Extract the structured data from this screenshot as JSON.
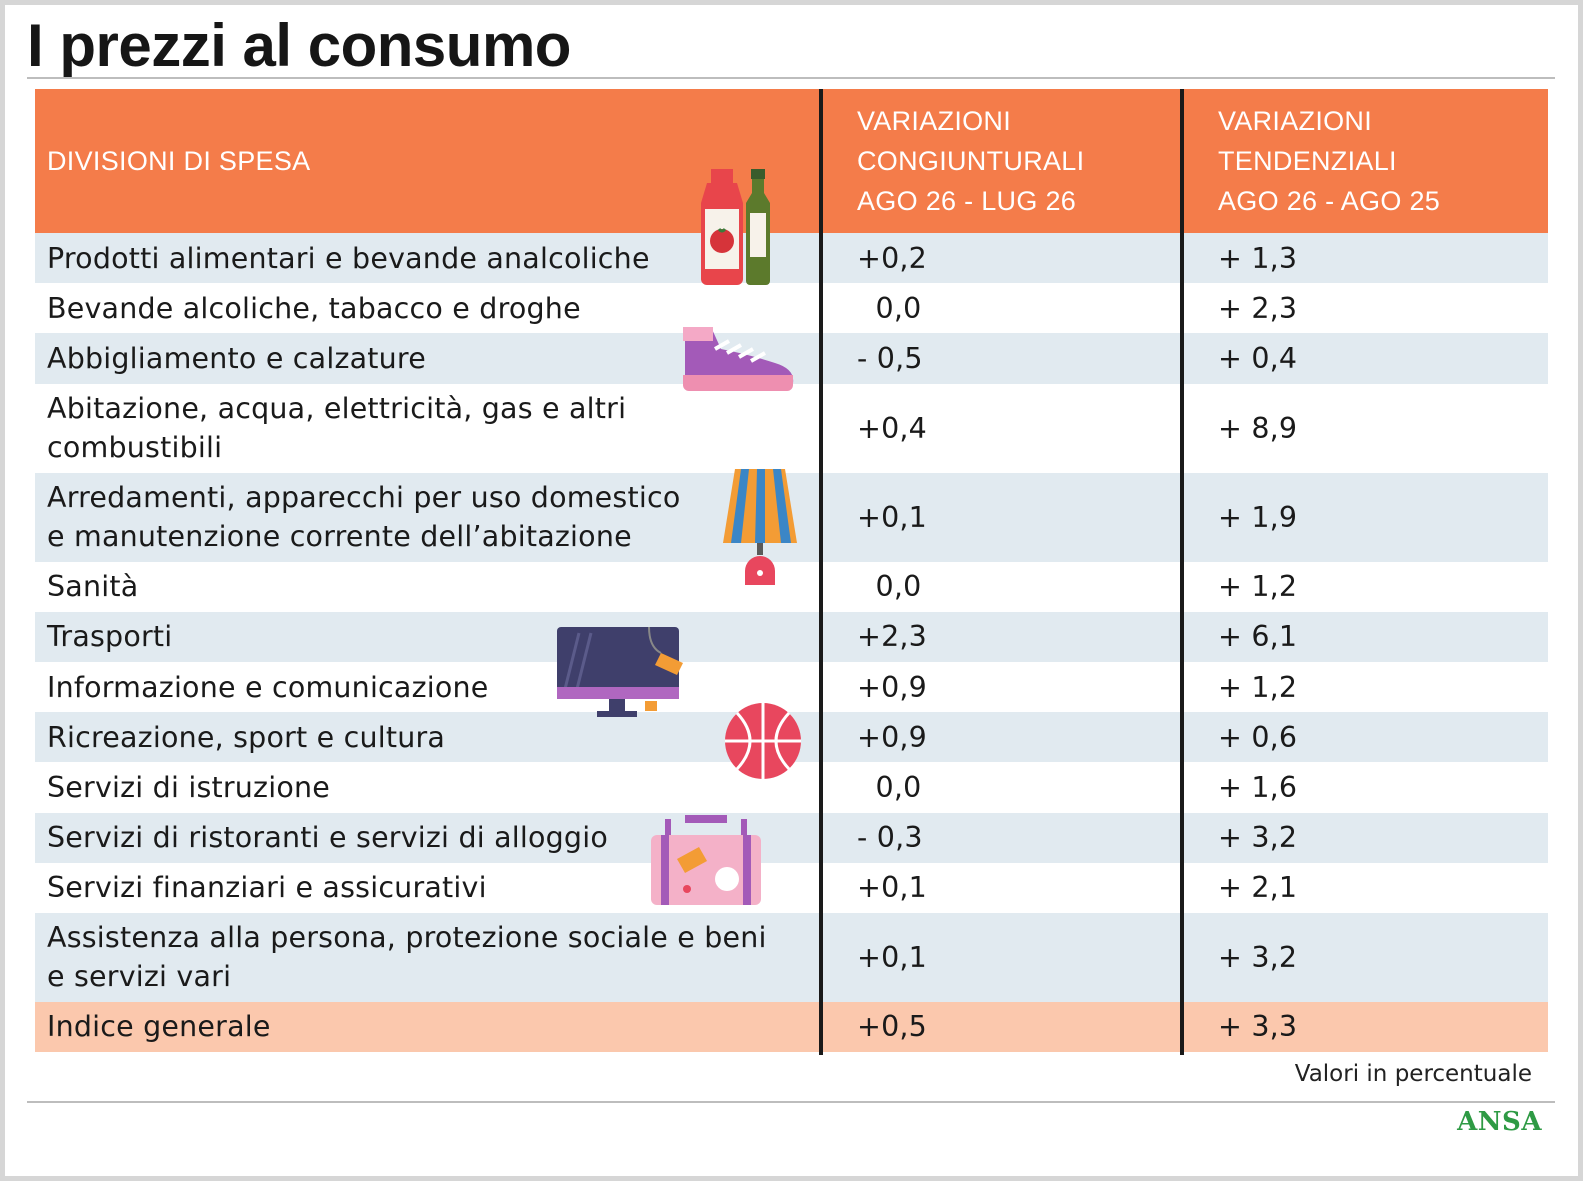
{
  "title": "I prezzi al consumo",
  "header": {
    "col1": "DIVISIONI DI SPESA",
    "col2": [
      "VARIAZIONI",
      "CONGIUNTURALI",
      "AGO 26 - LUG 26"
    ],
    "col3": [
      "VARIAZIONI TENDENZIALI",
      "AGO 26 - AGO 25"
    ]
  },
  "chart_data": {
    "type": "table",
    "columns": [
      "DIVISIONI DI SPESA",
      "VARIAZIONI CONGIUNTURALI AGO 26 - LUG 26",
      "VARIAZIONI TENDENZIALI AGO 26 - AGO 25"
    ],
    "rows": [
      {
        "label": [
          "Prodotti alimentari e bevande analcoliche"
        ],
        "cong": "+0,2",
        "tend": "+ 1,3",
        "kind": "shade"
      },
      {
        "label": [
          "Bevande alcoliche, tabacco e droghe"
        ],
        "cong": "  0,0",
        "tend": "+ 2,3",
        "kind": "plain"
      },
      {
        "label": [
          "Abbigliamento e calzature"
        ],
        "cong": "- 0,5",
        "tend": "+ 0,4",
        "kind": "shade"
      },
      {
        "label": [
          "Abitazione, acqua, elettricità, gas e altri",
          "combustibili"
        ],
        "cong": "+0,4",
        "tend": "+ 8,9",
        "kind": "plain"
      },
      {
        "label": [
          "Arredamenti, apparecchi per uso domestico",
          "e manutenzione corrente dell’abitazione"
        ],
        "cong": "+0,1",
        "tend": "+ 1,9",
        "kind": "shade"
      },
      {
        "label": [
          "Sanità"
        ],
        "cong": "  0,0",
        "tend": "+ 1,2",
        "kind": "plain"
      },
      {
        "label": [
          "Trasporti"
        ],
        "cong": "+2,3",
        "tend": "+ 6,1",
        "kind": "shade"
      },
      {
        "label": [
          "Informazione e comunicazione"
        ],
        "cong": "+0,9",
        "tend": "+ 1,2",
        "kind": "plain"
      },
      {
        "label": [
          "Ricreazione, sport e cultura"
        ],
        "cong": "+0,9",
        "tend": "+ 0,6",
        "kind": "shade"
      },
      {
        "label": [
          "Servizi di istruzione"
        ],
        "cong": "  0,0",
        "tend": "+ 1,6",
        "kind": "plain"
      },
      {
        "label": [
          "Servizi di ristoranti e servizi di alloggio"
        ],
        "cong": "- 0,3",
        "tend": "+ 3,2",
        "kind": "shade"
      },
      {
        "label": [
          "Servizi finanziari e assicurativi"
        ],
        "cong": "+0,1",
        "tend": "+ 2,1",
        "kind": "plain"
      },
      {
        "label": [
          "Assistenza alla persona, protezione sociale e beni",
          "e servizi vari"
        ],
        "cong": "+0,1",
        "tend": "+ 3,2",
        "kind": "shade"
      },
      {
        "label": [
          "Indice generale"
        ],
        "cong": "+0,5",
        "tend": "+ 3,3",
        "kind": "total"
      }
    ]
  },
  "note": "Valori in percentuale",
  "source_logo": "ANSA",
  "colors": {
    "header": "#f47c4a",
    "row_shade": "#e1eaf0",
    "row_total": "#fbc8ad",
    "logo": "#2e9a44"
  },
  "icons": [
    "bottles-icon",
    "sneaker-icon",
    "lamp-icon",
    "monitor-icon",
    "basketball-icon",
    "suitcase-icon"
  ]
}
